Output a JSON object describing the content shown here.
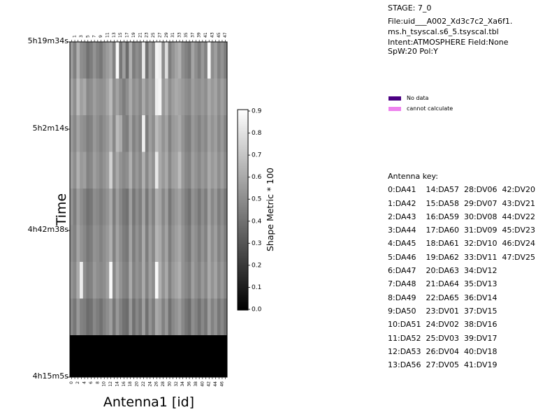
{
  "info": {
    "stage": "STAGE: 7_0",
    "file_line1": "File:uid___A002_Xd3c7c2_Xa6f1.",
    "file_line2": "ms.h_tsyscal.s6_5.tsyscal.tbl",
    "intent": "Intent:ATMOSPHERE Field:None",
    "spw": "SpW:20 Pol:Y"
  },
  "legend": [
    {
      "label": "No data",
      "color": "#4b0082"
    },
    {
      "label": "cannot calculate",
      "color": "#ee82ee"
    }
  ],
  "antenna_key": {
    "title": "Antenna key:",
    "rows": [
      "0:DA41    14:DA57  28:DV06  42:DV20",
      "1:DA42    15:DA58  29:DV07  43:DV21",
      "2:DA43    16:DA59  30:DV08  44:DV22",
      "3:DA44    17:DA60  31:DV09  45:DV23",
      "4:DA45    18:DA61  32:DV10  46:DV24",
      "5:DA46    19:DA62  33:DV11  47:DV25",
      "6:DA47    20:DA63  34:DV12",
      "7:DA48    21:DA64  35:DV13",
      "8:DA49    22:DA65  36:DV14",
      "9:DA50    23:DV01  37:DV15",
      "10:DA51  24:DV02  38:DV16",
      "11:DA52  25:DV03  39:DV17",
      "12:DA53  26:DV04  40:DV18",
      "13:DA56  27:DV05  41:DV19"
    ]
  },
  "chart_data": {
    "type": "heatmap",
    "xlabel": "Antenna1 [id]",
    "ylabel": "Time",
    "colorbar_label": "Shape Metric * 100",
    "colormap": "grayscale",
    "xlim": [
      0,
      48
    ],
    "x_ticks_bottom": [
      0,
      2,
      4,
      6,
      8,
      10,
      12,
      14,
      16,
      18,
      20,
      22,
      24,
      26,
      28,
      30,
      32,
      34,
      36,
      38,
      40,
      42,
      44,
      46
    ],
    "x_ticks_top": [
      1,
      3,
      5,
      7,
      9,
      11,
      13,
      15,
      17,
      19,
      21,
      23,
      25,
      27,
      29,
      31,
      33,
      35,
      37,
      39,
      41,
      43,
      45,
      47
    ],
    "y_ticks": [
      "5h19m34s",
      "5h2m14s",
      "4h42m38s",
      "4h15m5s"
    ],
    "colorbar_range": [
      0,
      0.9
    ],
    "colorbar_ticks": [
      "0.0",
      "0.1",
      "0.2",
      "0.3",
      "0.4",
      "0.5",
      "0.6",
      "0.7",
      "0.8",
      "0.9"
    ],
    "rows": 8,
    "values": [
      [
        0.55,
        0.45,
        0.62,
        0.5,
        0.48,
        0.4,
        0.44,
        0.52,
        0.46,
        0.42,
        0.5,
        0.55,
        0.6,
        0.46,
        0.88,
        0.42,
        0.56,
        0.38,
        0.62,
        0.44,
        0.5,
        0.46,
        0.82,
        0.4,
        0.56,
        0.48,
        0.86,
        0.84,
        0.5,
        0.78,
        0.44,
        0.52,
        0.58,
        0.62,
        0.5,
        0.46,
        0.42,
        0.58,
        0.5,
        0.44,
        0.54,
        0.46,
        0.88,
        0.5,
        0.56,
        0.46,
        0.52,
        0.44
      ],
      [
        0.58,
        0.5,
        0.66,
        0.56,
        0.6,
        0.48,
        0.5,
        0.56,
        0.52,
        0.5,
        0.52,
        0.58,
        0.66,
        0.5,
        0.58,
        0.5,
        0.44,
        0.5,
        0.6,
        0.5,
        0.54,
        0.48,
        0.6,
        0.5,
        0.56,
        0.52,
        0.84,
        0.86,
        0.54,
        0.62,
        0.5,
        0.56,
        0.6,
        0.58,
        0.54,
        0.5,
        0.48,
        0.56,
        0.52,
        0.5,
        0.54,
        0.5,
        0.6,
        0.54,
        0.58,
        0.5,
        0.56,
        0.5
      ],
      [
        0.54,
        0.48,
        0.58,
        0.52,
        0.5,
        0.44,
        0.46,
        0.54,
        0.5,
        0.46,
        0.5,
        0.54,
        0.62,
        0.48,
        0.66,
        0.6,
        0.46,
        0.44,
        0.58,
        0.46,
        0.52,
        0.46,
        0.84,
        0.44,
        0.56,
        0.5,
        0.66,
        0.6,
        0.52,
        0.58,
        0.46,
        0.54,
        0.56,
        0.6,
        0.52,
        0.46,
        0.44,
        0.54,
        0.5,
        0.46,
        0.52,
        0.48,
        0.58,
        0.52,
        0.56,
        0.48,
        0.54,
        0.46
      ],
      [
        0.56,
        0.5,
        0.62,
        0.54,
        0.56,
        0.46,
        0.48,
        0.56,
        0.52,
        0.48,
        0.52,
        0.56,
        0.74,
        0.5,
        0.6,
        0.52,
        0.48,
        0.5,
        0.62,
        0.48,
        0.54,
        0.48,
        0.62,
        0.48,
        0.58,
        0.52,
        0.82,
        0.6,
        0.54,
        0.6,
        0.48,
        0.56,
        0.58,
        0.66,
        0.54,
        0.48,
        0.46,
        0.56,
        0.52,
        0.48,
        0.54,
        0.5,
        0.6,
        0.54,
        0.58,
        0.5,
        0.56,
        0.48
      ],
      [
        0.52,
        0.44,
        0.56,
        0.5,
        0.46,
        0.4,
        0.42,
        0.5,
        0.48,
        0.44,
        0.48,
        0.52,
        0.6,
        0.44,
        0.56,
        0.48,
        0.42,
        0.4,
        0.56,
        0.42,
        0.5,
        0.44,
        0.58,
        0.42,
        0.54,
        0.46,
        0.62,
        0.58,
        0.48,
        0.56,
        0.42,
        0.5,
        0.54,
        0.58,
        0.5,
        0.44,
        0.4,
        0.52,
        0.48,
        0.42,
        0.5,
        0.44,
        0.58,
        0.48,
        0.54,
        0.44,
        0.5,
        0.42
      ],
      [
        0.5,
        0.46,
        0.58,
        0.52,
        0.48,
        0.42,
        0.44,
        0.52,
        0.5,
        0.46,
        0.5,
        0.54,
        0.62,
        0.46,
        0.58,
        0.5,
        0.44,
        0.42,
        0.58,
        0.44,
        0.52,
        0.46,
        0.6,
        0.44,
        0.56,
        0.48,
        0.64,
        0.6,
        0.5,
        0.58,
        0.44,
        0.52,
        0.56,
        0.6,
        0.52,
        0.46,
        0.42,
        0.54,
        0.5,
        0.44,
        0.52,
        0.46,
        0.6,
        0.5,
        0.56,
        0.46,
        0.52,
        0.44
      ],
      [
        0.52,
        0.48,
        0.6,
        0.84,
        0.5,
        0.44,
        0.46,
        0.54,
        0.5,
        0.48,
        0.5,
        0.56,
        0.88,
        0.48,
        0.6,
        0.52,
        0.46,
        0.44,
        0.6,
        0.46,
        0.52,
        0.48,
        0.6,
        0.46,
        0.56,
        0.5,
        0.88,
        0.62,
        0.52,
        0.6,
        0.46,
        0.54,
        0.58,
        0.62,
        0.52,
        0.48,
        0.44,
        0.56,
        0.5,
        0.46,
        0.54,
        0.48,
        0.6,
        0.52,
        0.58,
        0.48,
        0.54,
        0.46
      ],
      [
        0.48,
        0.42,
        0.54,
        0.46,
        0.44,
        0.38,
        0.4,
        0.48,
        0.44,
        0.4,
        0.46,
        0.5,
        0.56,
        0.42,
        0.54,
        0.46,
        0.4,
        0.38,
        0.54,
        0.4,
        0.48,
        0.42,
        0.56,
        0.4,
        0.52,
        0.44,
        0.6,
        0.56,
        0.46,
        0.54,
        0.4,
        0.48,
        0.52,
        0.56,
        0.48,
        0.42,
        0.38,
        0.5,
        0.46,
        0.4,
        0.48,
        0.42,
        0.56,
        0.46,
        0.52,
        0.42,
        0.48,
        0.4
      ]
    ],
    "no_data_row_label": "no data (black)"
  }
}
